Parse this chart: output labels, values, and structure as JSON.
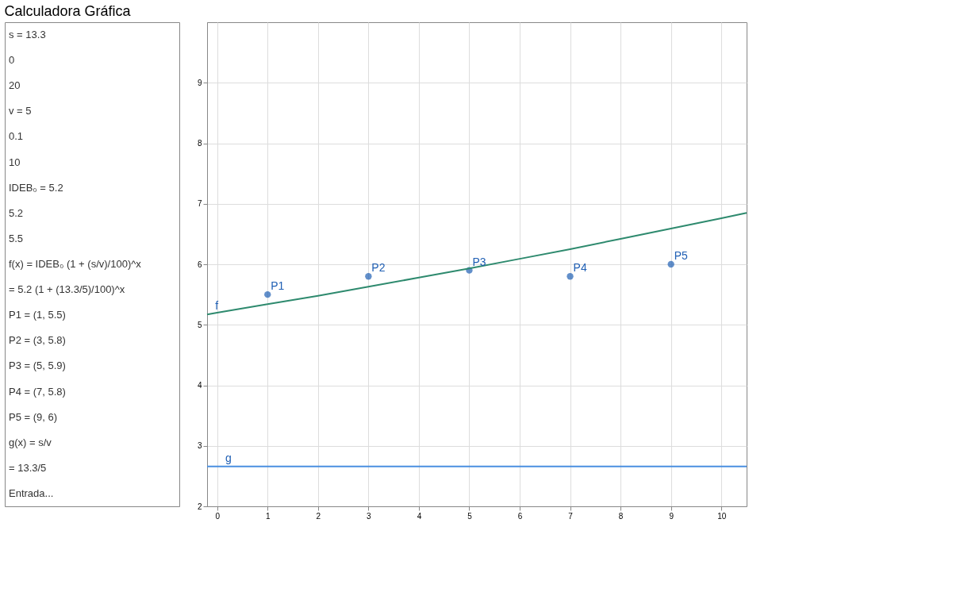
{
  "chart_data": {
    "type": "scatter",
    "title": "Calculadora Gráfica",
    "series": [
      {
        "x": [
          1,
          3,
          5,
          7,
          9
        ],
        "values": [
          5.5,
          5.8,
          5.9,
          5.8,
          6
        ],
        "color": "#1f5fb4",
        "marker": "circle"
      },
      {
        "type": "line",
        "x": [
          -0.2,
          0,
          1,
          2,
          3,
          4,
          5,
          6,
          7,
          8,
          9,
          10,
          10.5
        ],
        "values": [
          5.17,
          5.2,
          5.34,
          5.48,
          5.63,
          5.78,
          5.93,
          6.09,
          6.25,
          6.42,
          6.59,
          6.76,
          6.85
        ],
        "color": "#2e8a6e",
        "marker": "none",
        "line_style": "solid"
      },
      {
        "type": "line",
        "x": [
          -0.2,
          10.5
        ],
        "values": [
          2.66,
          2.66
        ],
        "color": "#4a8fe0",
        "marker": "none",
        "line_style": "solid"
      }
    ],
    "xlim": [
      -0.2,
      10.5
    ],
    "ylim": [
      2,
      10
    ],
    "xticks": [
      0,
      1,
      2,
      3,
      4,
      5,
      6,
      7,
      8,
      9,
      10
    ],
    "yticks": [
      2,
      3,
      4,
      5,
      6,
      7,
      8,
      9
    ],
    "grid": true,
    "annotations": [
      {
        "text": "P1",
        "x": 1,
        "y": 5.5
      },
      {
        "text": "P2",
        "x": 3,
        "y": 5.8
      },
      {
        "text": "P3",
        "x": 5,
        "y": 5.9
      },
      {
        "text": "P4",
        "x": 7,
        "y": 5.8
      },
      {
        "text": "P5",
        "x": 9,
        "y": 6
      },
      {
        "text": "f",
        "x": -0.1,
        "y": 5.17
      },
      {
        "text": "g",
        "x": 0.1,
        "y": 2.66
      },
      "s = 13.3",
      "0",
      "20",
      "v = 5",
      "0.1",
      "10",
      "IDEB₀ = 5.2",
      "5.2",
      "5.5",
      "f(x) = IDEB₀ (1 + (s/v)/100)^x",
      "= 5.2 (1 + (13.3/5)/100)^x",
      "P1 = (1, 5.5)",
      "P2 = (3, 5.8)",
      "P3 = (5, 5.9)",
      "P4 = (7, 5.8)",
      "P5 = (9, 6)",
      "g(x) = s/v",
      "= 13.3/5",
      "Entrada..."
    ]
  }
}
